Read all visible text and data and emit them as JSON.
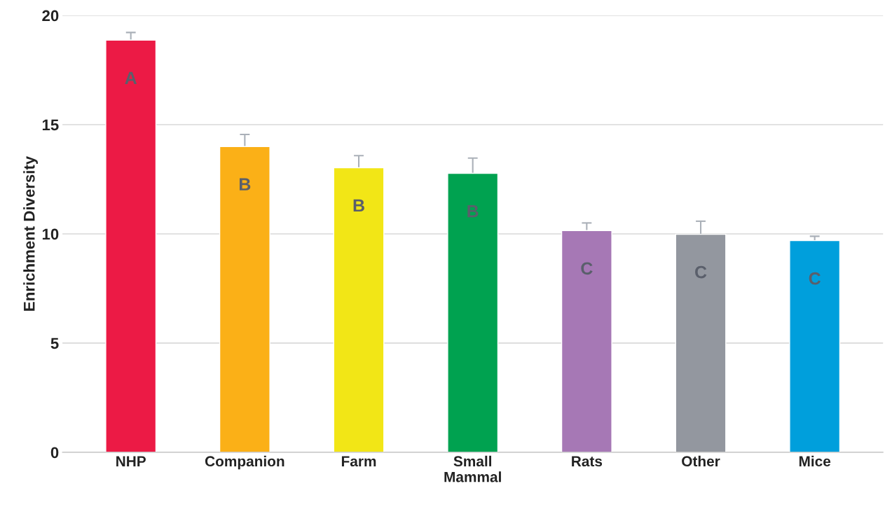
{
  "chart_data": {
    "type": "bar",
    "ylabel": "Enrichment Diversity",
    "categories": [
      "NHP",
      "Companion",
      "Farm",
      "Small\nMammal",
      "Rats",
      "Other",
      "Mice"
    ],
    "values": [
      18.87,
      14.0,
      13.03,
      12.77,
      10.15,
      9.98,
      9.69
    ],
    "errors": [
      0.35,
      0.55,
      0.55,
      0.7,
      0.35,
      0.6,
      0.2
    ],
    "colors": [
      "#ec1a45",
      "#fbb017",
      "#f2e616",
      "#00a250",
      "#a678b5",
      "#93979f",
      "#009fdc"
    ],
    "ylim": [
      0,
      20
    ],
    "yticks": [
      0,
      5,
      10,
      15,
      20
    ],
    "grid": "y",
    "annotations": [
      "A",
      "B",
      "B",
      "B",
      "C",
      "C",
      "C"
    ]
  }
}
